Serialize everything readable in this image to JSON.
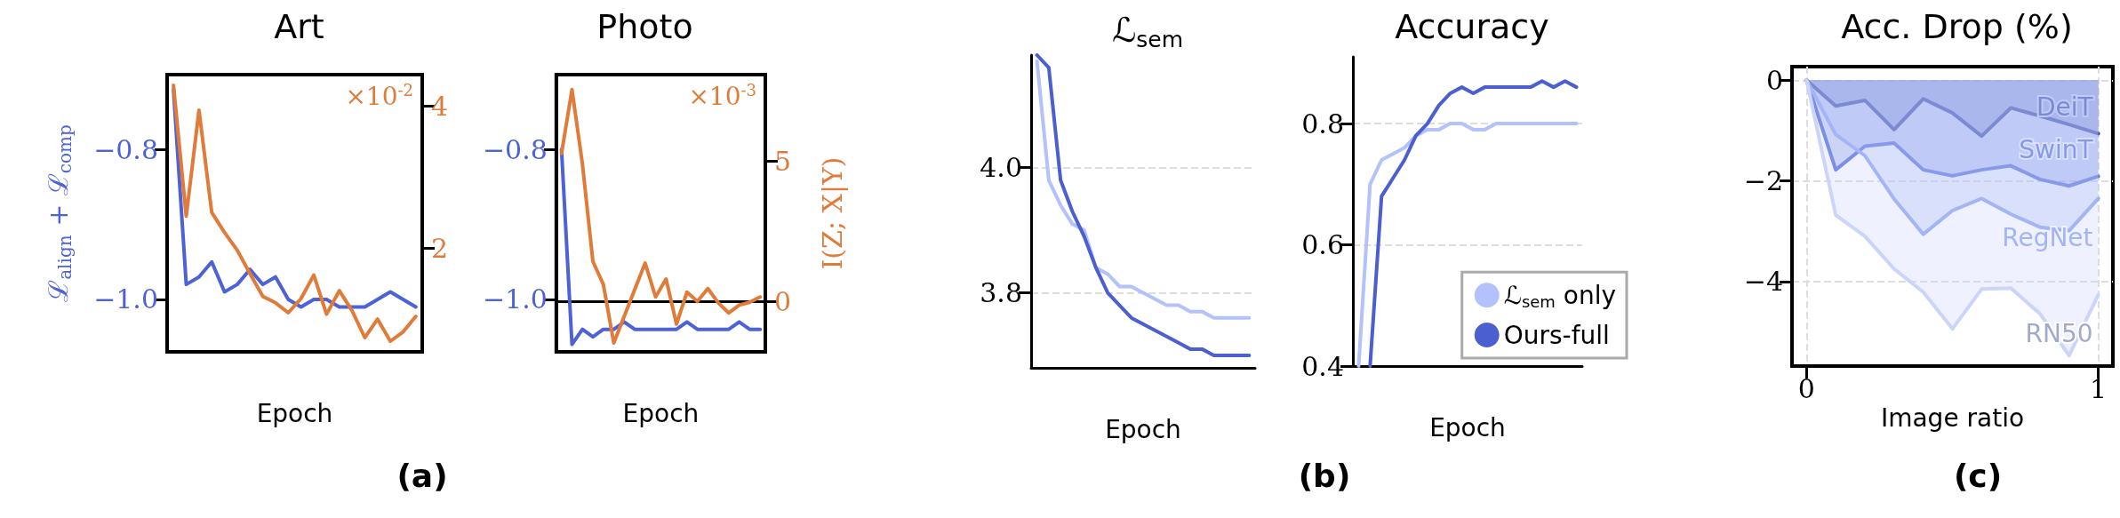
{
  "chart_data": [
    {
      "type": "line",
      "title": "Art",
      "xlabel": "Epoch",
      "ylabel": "ℒ$_{align}$ + ℒ$_{comp}$",
      "categories": [
        null,
        null,
        null,
        null,
        null,
        null,
        null,
        null,
        null,
        null,
        null,
        null,
        null,
        null,
        null,
        null,
        null,
        null,
        null,
        null
      ],
      "series": [
        {
          "color": "#4c62d6",
          "values": [
            -0.72,
            -0.98,
            -0.97,
            -0.95,
            -0.99,
            -0.98,
            -0.96,
            -0.98,
            -0.97,
            -1.0,
            -1.01,
            -1.0,
            -1.0,
            -1.01,
            -1.01,
            -1.01,
            -1.0,
            -0.99,
            -1.0,
            -1.01
          ]
        },
        {
          "color": "#e07b39",
          "axis": "y2",
          "values": [
            4.29,
            2.45,
            3.94,
            2.5,
            2.22,
            1.97,
            1.64,
            1.32,
            1.23,
            1.09,
            1.29,
            1.62,
            1.07,
            1.4,
            1.12,
            0.74,
            1.0,
            0.69,
            0.82,
            1.04
          ]
        }
      ],
      "ylim": [
        -1.07,
        -0.7
      ],
      "yticks": [
        {
          "value": -1.0,
          "label": "−1.0"
        },
        {
          "value": -0.8,
          "label": "−0.8"
        }
      ],
      "y2lim": [
        0.54,
        4.44
      ],
      "y2ticks": [
        2,
        4
      ],
      "annotations": [
        "×10$^{-2}$",
        "(a)"
      ]
    },
    {
      "type": "line",
      "title": "Photo",
      "xlabel": "Epoch",
      "y2label": "I(Z; X|Y)",
      "categories": [
        null,
        null,
        null,
        null,
        null,
        null,
        null,
        null,
        null,
        null,
        null,
        null,
        null,
        null,
        null,
        null,
        null,
        null,
        null,
        null
      ],
      "series": [
        {
          "color": "#4c62d6",
          "values": [
            -0.8,
            -1.06,
            -1.04,
            -1.05,
            -1.04,
            -1.04,
            -1.03,
            -1.04,
            -1.04,
            -1.04,
            -1.04,
            -1.04,
            -1.03,
            -1.04,
            -1.04,
            -1.04,
            -1.04,
            -1.03,
            -1.04,
            -1.04
          ]
        },
        {
          "color": "#e07b39",
          "axis": "y2",
          "values": [
            5.28,
            7.57,
            4.91,
            1.43,
            0.61,
            -1.48,
            -0.53,
            0.42,
            1.37,
            0.16,
            0.8,
            -0.81,
            0.33,
            0.0,
            0.46,
            -0.05,
            -0.41,
            -0.13,
            -0.03,
            0.16
          ]
        }
      ],
      "ylim": [
        -1.07,
        -0.7
      ],
      "yticks": [
        {
          "value": -1.0,
          "label": "−1.0"
        },
        {
          "value": -0.8,
          "label": "−0.8"
        }
      ],
      "y2lim": [
        -1.8,
        8.1
      ],
      "y2ticks": [
        0,
        5
      ],
      "annotations": [
        "×10$^{-3}$"
      ]
    },
    {
      "type": "line",
      "title": "ℒ$_{sem}$",
      "xlabel": "Epoch",
      "categories": [
        null,
        null,
        null,
        null,
        null,
        null,
        null,
        null,
        null,
        null,
        null,
        null,
        null,
        null,
        null,
        null,
        null,
        null,
        null
      ],
      "series": [
        {
          "color": "#b3c2fb",
          "values": [
            4.17,
            3.98,
            3.94,
            3.91,
            3.9,
            3.84,
            3.83,
            3.81,
            3.81,
            3.8,
            3.79,
            3.78,
            3.78,
            3.77,
            3.77,
            3.76,
            3.76,
            3.76,
            3.76
          ]
        },
        {
          "color": "#4b5fd0",
          "values": [
            4.18,
            4.16,
            3.98,
            3.93,
            3.89,
            3.84,
            3.8,
            3.78,
            3.76,
            3.75,
            3.74,
            3.73,
            3.72,
            3.71,
            3.71,
            3.7,
            3.7,
            3.7,
            3.7
          ]
        }
      ],
      "ylim": [
        3.68,
        4.18
      ],
      "yticks": [
        {
          "value": 3.8,
          "label": "3.8"
        },
        {
          "value": 4.0,
          "label": "4.0"
        }
      ],
      "grid": "y",
      "annotations": [
        "(b)"
      ]
    },
    {
      "type": "line",
      "title": "Accuracy",
      "xlabel": "Epoch",
      "categories": [
        null,
        null,
        null,
        null,
        null,
        null,
        null,
        null,
        null,
        null,
        null,
        null,
        null,
        null,
        null,
        null,
        null,
        null,
        null,
        null
      ],
      "series": [
        {
          "name": "ℒ$_{sem}$ only",
          "color": "#b3c2fb",
          "values": [
            0.4,
            0.7,
            0.74,
            0.75,
            0.76,
            0.78,
            0.79,
            0.79,
            0.8,
            0.8,
            0.79,
            0.79,
            0.8,
            0.8,
            0.8,
            0.8,
            0.8,
            0.8,
            0.8,
            0.8
          ]
        },
        {
          "name": "Ours-full",
          "color": "#4b5fd0",
          "values": [
            null,
            0.4,
            0.68,
            0.71,
            0.74,
            0.78,
            0.8,
            0.83,
            0.85,
            0.86,
            0.85,
            0.86,
            0.86,
            0.86,
            0.86,
            0.86,
            0.87,
            0.86,
            0.87,
            0.86
          ]
        }
      ],
      "ylim": [
        0.4,
        0.91
      ],
      "yticks": [
        0.4,
        0.6,
        0.8
      ],
      "grid": "y",
      "legend": "bottom right"
    },
    {
      "type": "area",
      "title": "Acc. Drop (%)",
      "xlabel": "Image ratio",
      "x": [
        0,
        0.1,
        0.2,
        0.3,
        0.4,
        0.5,
        0.6,
        0.7,
        0.8,
        0.9,
        1
      ],
      "series": [
        {
          "name": "DeiT",
          "color": "#38449a",
          "values": [
            0,
            -0.51,
            -0.4,
            -0.98,
            -0.37,
            -0.65,
            -1.11,
            -0.55,
            -0.71,
            -0.88,
            -1.06
          ]
        },
        {
          "name": "SwinT",
          "color": "#5a72dc",
          "values": [
            0,
            -1.78,
            -1.31,
            -1.25,
            -1.78,
            -1.9,
            -1.78,
            -1.7,
            -1.97,
            -2.1,
            -1.91
          ]
        },
        {
          "name": "RegNet",
          "color": "#93a8f5",
          "values": [
            0,
            -1.08,
            -1.5,
            -2.36,
            -3.06,
            -2.59,
            -2.35,
            -2.66,
            -2.92,
            -2.99,
            -2.35
          ]
        },
        {
          "name": "RN50",
          "color": "#cbd5fb",
          "values": [
            0,
            -2.68,
            -3.1,
            -3.75,
            -4.21,
            -4.94,
            -4.15,
            -4.13,
            -4.64,
            -5.47,
            -4.26
          ]
        }
      ],
      "xlim": [
        -0.05,
        1.05
      ],
      "xticks": [
        0,
        1
      ],
      "ylim": [
        -5.68,
        0.27
      ],
      "yticks": [
        {
          "value": -4,
          "label": "−4"
        },
        {
          "value": -2,
          "label": "−2"
        },
        0
      ],
      "grid": true,
      "annotations": [
        "(c)"
      ]
    }
  ]
}
